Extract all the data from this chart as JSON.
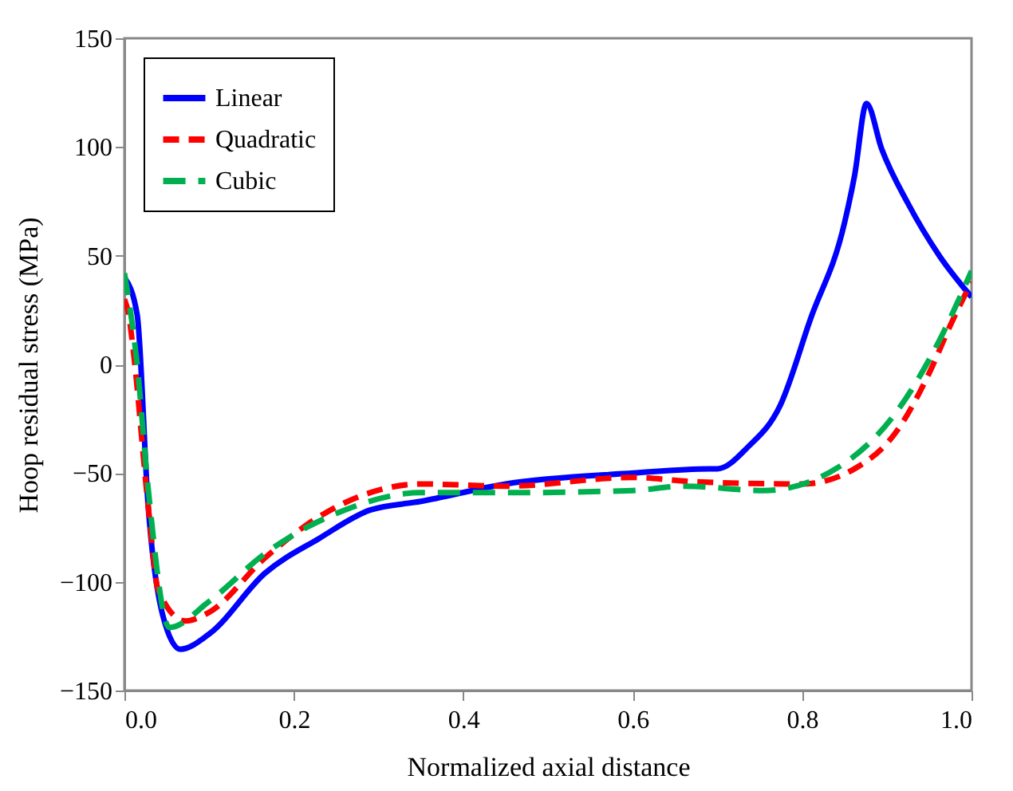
{
  "chart_data": {
    "type": "line",
    "xlabel": "Normalized axial distance",
    "ylabel": "Hoop residual stress (MPa)",
    "xlim": [
      0,
      1
    ],
    "xticks": [
      {
        "value": 0,
        "label": "0.0"
      },
      0.2,
      0.4,
      0.6,
      0.8,
      {
        "value": 1,
        "label": "1.0"
      }
    ],
    "ylim": [
      -150,
      150
    ],
    "yticks": [
      -150,
      -100,
      -50,
      0,
      50,
      100,
      150
    ],
    "grid": false,
    "legend": "top left",
    "series": [
      {
        "name": "Linear",
        "color": "#0000ff",
        "line_style": "solid",
        "x": [
          0,
          0.015,
          0.028,
          0.045,
          0.066,
          0.1,
          0.166,
          0.23,
          0.29,
          0.35,
          0.45,
          0.6,
          0.69,
          0.7,
          0.736,
          0.774,
          0.81,
          0.85,
          0.862,
          0.876,
          0.894,
          0.925,
          0.962,
          1.0
        ],
        "values": [
          40,
          23,
          -65,
          -115,
          -131,
          -124,
          -96,
          -80,
          -67,
          -63,
          -55,
          -50,
          -48,
          -48,
          -38,
          -19,
          21,
          65,
          87,
          120,
          99,
          74,
          50,
          31
        ]
      },
      {
        "name": "Quadratic",
        "color": "#ff0000",
        "line_style": "dashed",
        "x": [
          0,
          0.005,
          0.01,
          0.028,
          0.04,
          0.072,
          0.1,
          0.166,
          0.23,
          0.29,
          0.35,
          0.45,
          0.6,
          0.674,
          0.8,
          0.862,
          0.913,
          0.95,
          0.975,
          1.0
        ],
        "values": [
          30,
          23,
          8,
          -65,
          -104,
          -118,
          -114,
          -89,
          -70,
          -59,
          -55,
          -56,
          -52,
          -54,
          -55,
          -48,
          -30,
          -4,
          18,
          38
        ]
      },
      {
        "name": "Cubic",
        "color": "#00b050",
        "line_style": "dashed",
        "x": [
          0,
          0.015,
          0.028,
          0.053,
          0.1,
          0.166,
          0.26,
          0.35,
          0.45,
          0.6,
          0.66,
          0.755,
          0.844,
          0.913,
          0.962,
          1.0
        ],
        "values": [
          42,
          0,
          -57,
          -121,
          -109,
          -87,
          -67,
          -59,
          -59,
          -58,
          -56,
          -58,
          -47,
          -21,
          11,
          43
        ]
      }
    ]
  }
}
